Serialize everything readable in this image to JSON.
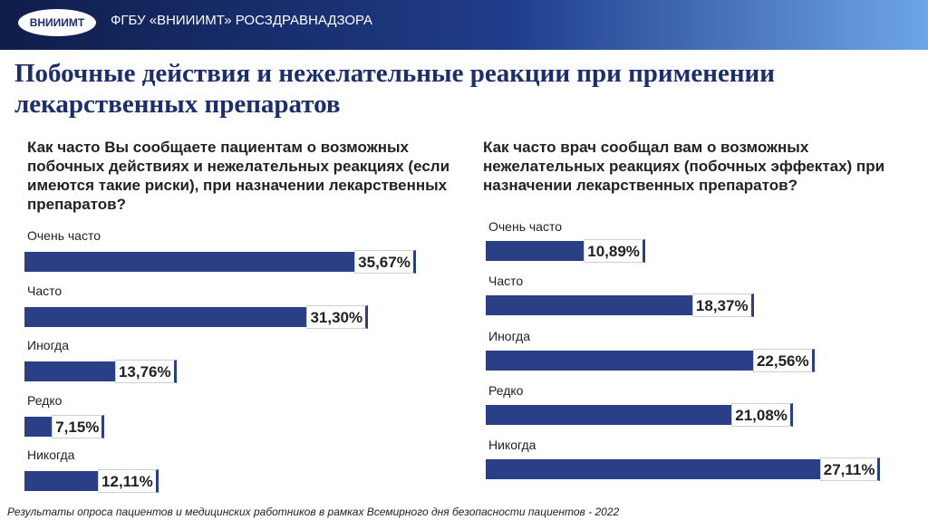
{
  "header": {
    "logo": "ВНИИИМТ",
    "organization": "ФГБУ «ВНИИИМТ» РОСЗДРАВНАДЗОРА"
  },
  "title": "Побочные действия и нежелательные реакции при применении лекарственных препаратов",
  "chart_data": [
    {
      "type": "bar",
      "orientation": "horizontal",
      "color": "#2b3f87",
      "title": "Как часто Вы сообщаете пациентам о возможных побочных действиях и нежелательных реакциях (если имеются такие риски), при назначении лекарственных препаратов?",
      "categories": [
        "Очень часто",
        "Часто",
        "Иногда",
        "Редко",
        "Никогда"
      ],
      "values": [
        35.67,
        31.3,
        13.76,
        7.15,
        12.11
      ],
      "value_labels": [
        "35,67%",
        "31,30%",
        "13,76%",
        "7,15%",
        "12,11%"
      ]
    },
    {
      "type": "bar",
      "orientation": "horizontal",
      "color": "#2b3f87",
      "title": "Как часто врач сообщал вам о возможных нежелательных реакциях (побочных эффектах) при назначении лекарственных препаратов?",
      "categories": [
        "Очень часто",
        "Часто",
        "Иногда",
        "Редко",
        "Никогда"
      ],
      "values": [
        10.89,
        18.37,
        22.56,
        21.08,
        27.11
      ],
      "value_labels": [
        "10,89%",
        "18,37%",
        "22,56%",
        "21,08%",
        "27,11%"
      ]
    }
  ],
  "footnote": "Результаты опроса пациентов и медицинских работников в рамках Всемирного дня безопасности пациентов - 2022"
}
